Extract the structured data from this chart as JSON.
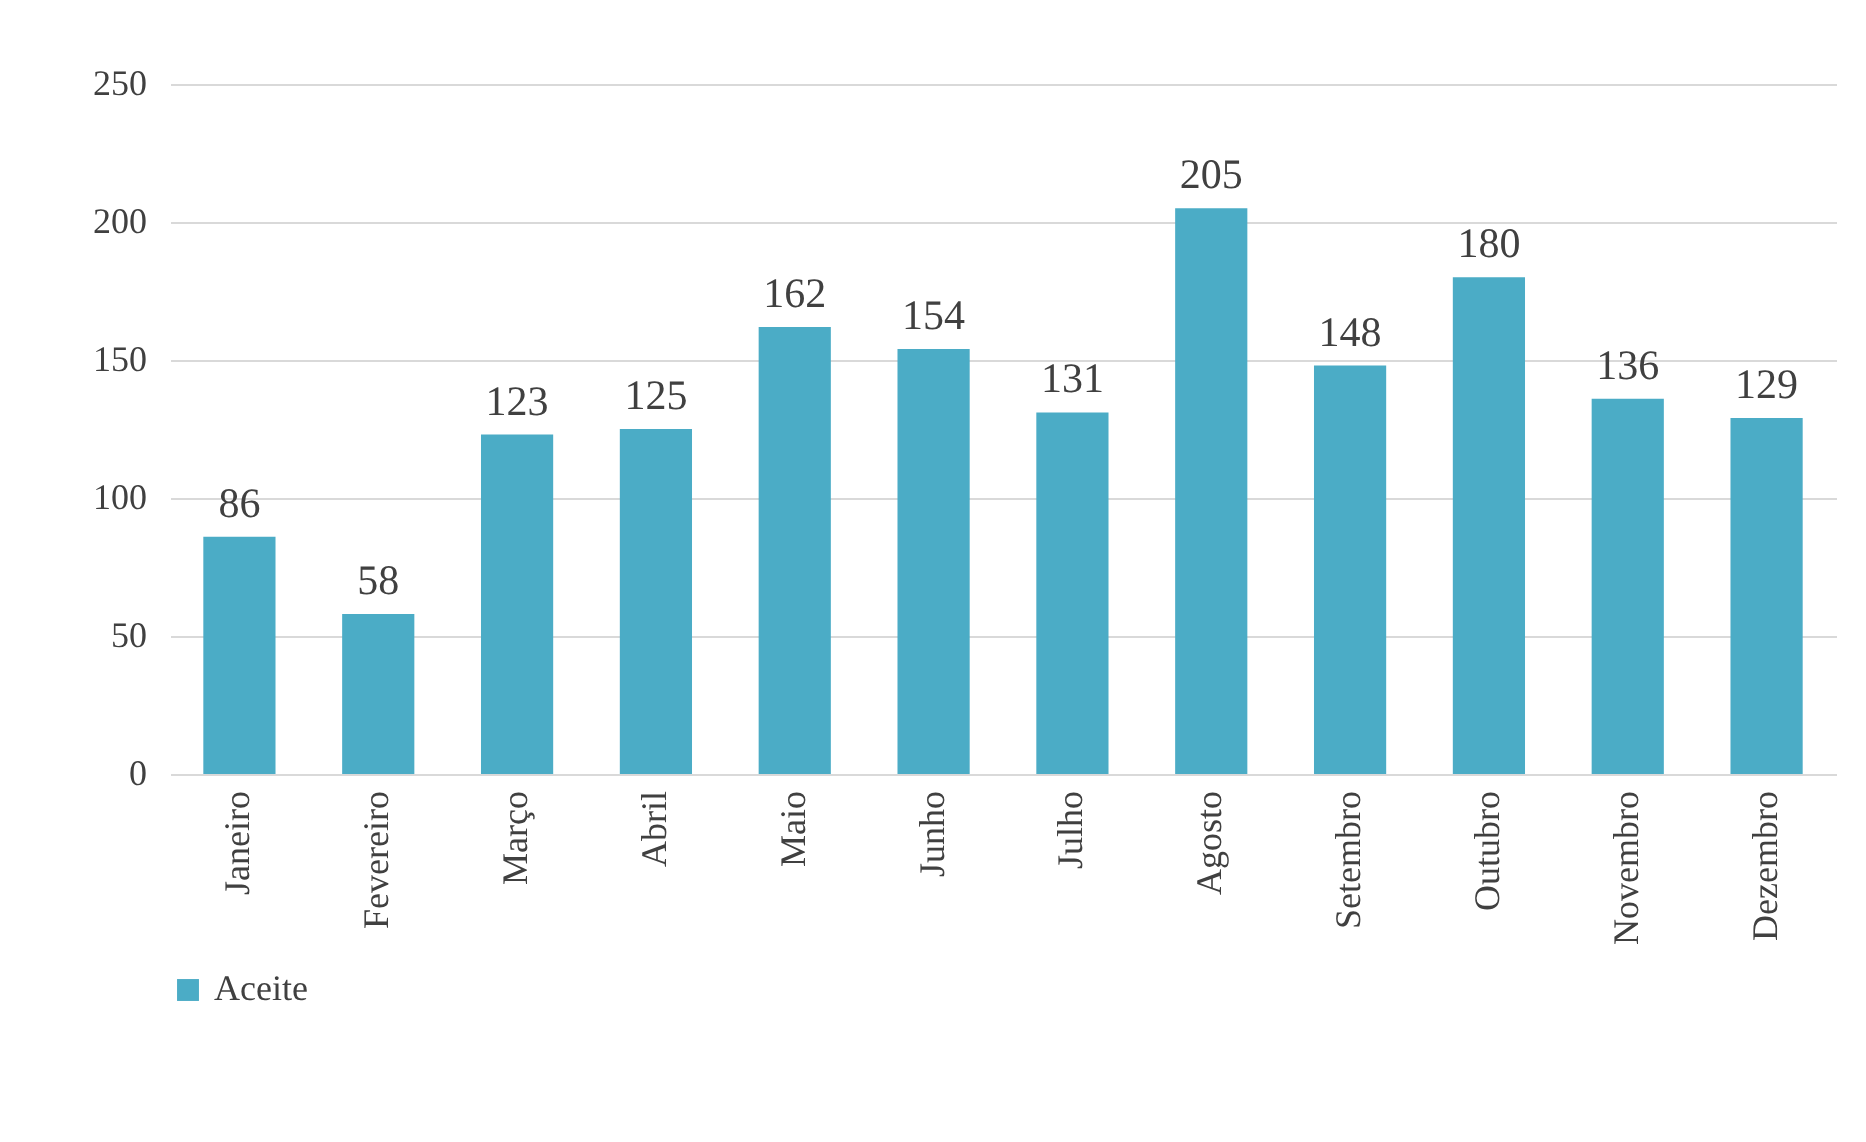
{
  "chart_data": {
    "type": "bar",
    "categories": [
      "Janeiro",
      "Fevereiro",
      "Março",
      "Abril",
      "Maio",
      "Junho",
      "Julho",
      "Agosto",
      "Setembro",
      "Outubro",
      "Novembro",
      "Dezembro"
    ],
    "series": [
      {
        "name": "Aceite",
        "color": "#4bacc6",
        "values": [
          86,
          58,
          123,
          125,
          162,
          154,
          131,
          205,
          148,
          180,
          136,
          129
        ]
      }
    ],
    "ylim": [
      0,
      250
    ],
    "yticks": [
      0,
      50,
      100,
      150,
      200,
      250
    ],
    "grid": "y",
    "legend": "bottom",
    "data_labels": true
  }
}
